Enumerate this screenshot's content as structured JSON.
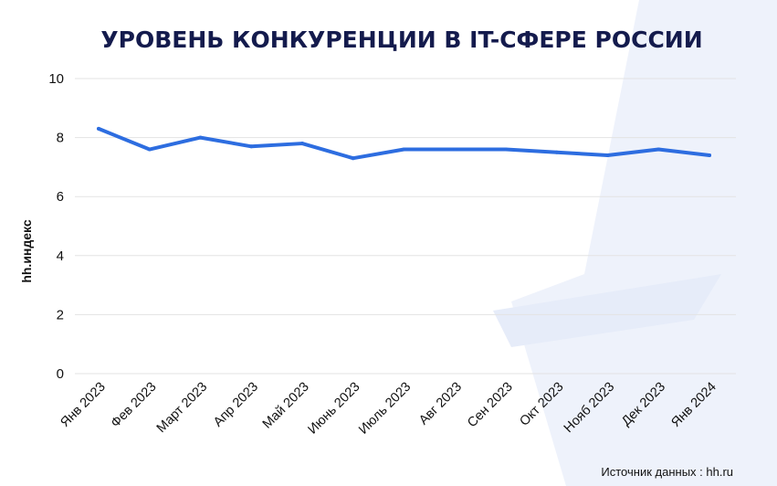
{
  "chart_data": {
    "type": "line",
    "title": "УРОВЕНЬ КОНКУРЕНЦИИ В IT-СФЕРЕ РОССИИ",
    "xlabel": "",
    "ylabel": "hh.индекс",
    "categories": [
      "Янв 2023",
      "Фев 2023",
      "Март 2023",
      "Апр 2023",
      "Май 2023",
      "Июнь 2023",
      "Июль 2023",
      "Авг 2023",
      "Сен 2023",
      "Окт 2023",
      "Нояб 2023",
      "Дек 2023",
      "Янв 2024"
    ],
    "series": [
      {
        "values": [
          8.3,
          7.6,
          8.0,
          7.7,
          7.8,
          7.3,
          7.6,
          7.6,
          7.6,
          7.5,
          7.4,
          7.6,
          7.4
        ]
      }
    ],
    "ylim": [
      0,
      10
    ],
    "yticks": [
      0,
      2,
      4,
      6,
      8,
      10
    ],
    "grid": true,
    "line_color": "#2d6de0",
    "source": "Источник данных : hh.ru"
  },
  "colors": {
    "title": "#141b4d",
    "watermark": "#eef2fb"
  }
}
